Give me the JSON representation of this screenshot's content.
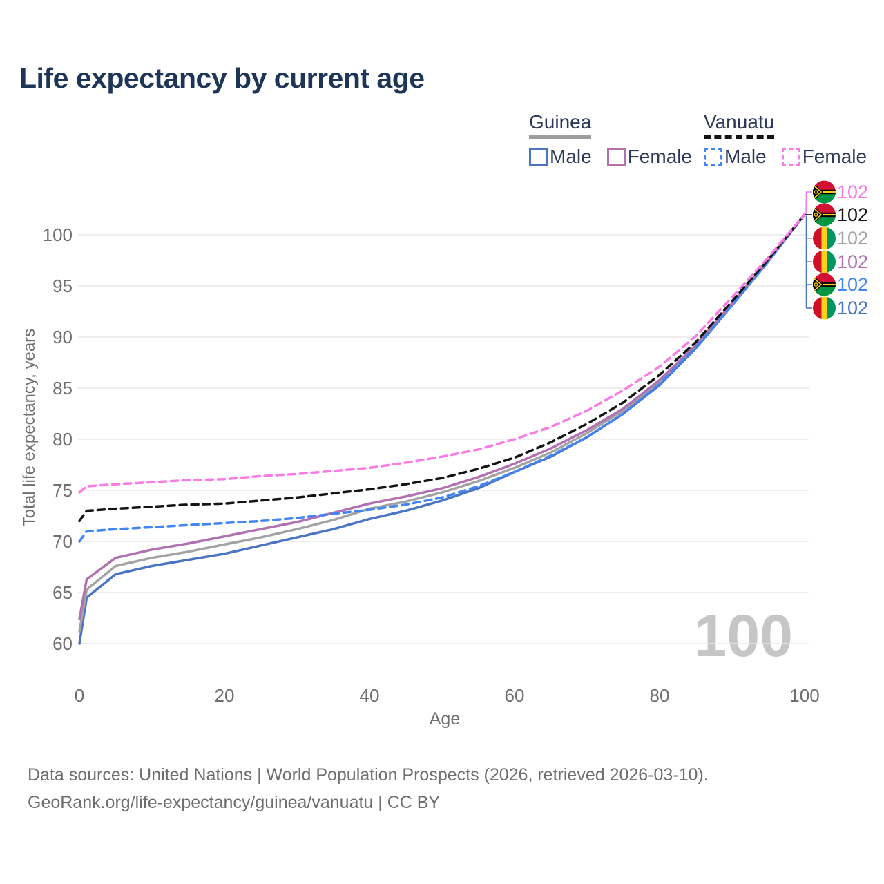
{
  "title": "Life expectancy by current age",
  "legend": {
    "groups": [
      {
        "label": "Guinea",
        "style": "solid",
        "line_color": "#9e9e9e",
        "items": [
          {
            "label": "Male",
            "color": "#4a74c4"
          },
          {
            "label": "Female",
            "color": "#b171b1"
          }
        ]
      },
      {
        "label": "Vanuatu",
        "style": "dashed",
        "line_color": "#141414",
        "items": [
          {
            "label": "Male",
            "color": "#4285f4"
          },
          {
            "label": "Female",
            "color": "#fb7be6"
          }
        ]
      }
    ]
  },
  "chart_data": {
    "type": "line",
    "title": "Life expectancy by current age",
    "xlabel": "Age",
    "ylabel": "Total life expectancy, years",
    "x_ticks": [
      0,
      20,
      40,
      60,
      80,
      100
    ],
    "y_ticks": [
      60,
      65,
      70,
      75,
      80,
      85,
      90,
      95,
      100
    ],
    "xlim": [
      0,
      100
    ],
    "ylim": [
      59.5,
      103
    ],
    "grid": true,
    "legend_position": "top-right",
    "watermark": "100",
    "x": [
      0,
      1,
      5,
      10,
      15,
      20,
      25,
      30,
      35,
      40,
      45,
      50,
      55,
      60,
      65,
      70,
      75,
      80,
      85,
      90,
      95,
      100
    ],
    "series": [
      {
        "id": "guinea-male",
        "name": "Guinea Male",
        "country": "Guinea",
        "sex": "Male",
        "color": "#4a74c4",
        "dashed": false,
        "end_label": "102",
        "values": [
          60.0,
          64.5,
          66.8,
          67.6,
          68.2,
          68.8,
          69.6,
          70.4,
          71.2,
          72.2,
          73.0,
          74.0,
          75.2,
          76.8,
          78.3,
          80.2,
          82.5,
          85.3,
          88.9,
          93.1,
          97.4,
          102
        ]
      },
      {
        "id": "guinea",
        "name": "Guinea",
        "country": "Guinea",
        "sex": "Both",
        "color": "#a3a3a3",
        "dashed": false,
        "end_label": "102",
        "values": [
          61.2,
          65.3,
          67.6,
          68.4,
          69.0,
          69.7,
          70.4,
          71.2,
          72.1,
          73.2,
          73.9,
          74.8,
          75.9,
          77.2,
          78.7,
          80.6,
          82.8,
          85.6,
          89.1,
          93.2,
          97.5,
          102
        ]
      },
      {
        "id": "guinea-female",
        "name": "Guinea Female",
        "country": "Guinea",
        "sex": "Female",
        "color": "#b171b1",
        "dashed": false,
        "end_label": "102",
        "values": [
          62.4,
          66.3,
          68.4,
          69.2,
          69.8,
          70.5,
          71.2,
          71.9,
          72.8,
          73.7,
          74.4,
          75.2,
          76.3,
          77.6,
          79.1,
          80.9,
          83.0,
          85.8,
          89.2,
          93.3,
          97.5,
          102
        ]
      },
      {
        "id": "vanuatu-male",
        "name": "Vanuatu Male",
        "country": "Vanuatu",
        "sex": "Male",
        "color": "#4285f4",
        "dashed": true,
        "end_label": "102",
        "values": [
          70.0,
          71.0,
          71.2,
          71.4,
          71.6,
          71.8,
          72.0,
          72.3,
          72.7,
          73.1,
          73.6,
          74.3,
          75.4,
          76.8,
          78.4,
          80.2,
          82.5,
          85.4,
          89.0,
          93.1,
          97.4,
          102
        ]
      },
      {
        "id": "vanuatu",
        "name": "Vanuatu",
        "country": "Vanuatu",
        "sex": "Both",
        "color": "#141414",
        "dashed": true,
        "end_label": "102",
        "values": [
          72.0,
          73.0,
          73.2,
          73.4,
          73.6,
          73.7,
          74.0,
          74.3,
          74.7,
          75.1,
          75.6,
          76.2,
          77.1,
          78.2,
          79.7,
          81.5,
          83.6,
          86.3,
          89.5,
          93.5,
          97.6,
          102
        ]
      },
      {
        "id": "vanuatu-female",
        "name": "Vanuatu Female",
        "country": "Vanuatu",
        "sex": "Female",
        "color": "#fb7be6",
        "dashed": true,
        "end_label": "102",
        "values": [
          74.8,
          75.4,
          75.6,
          75.8,
          76.0,
          76.1,
          76.4,
          76.6,
          76.9,
          77.2,
          77.7,
          78.3,
          79.0,
          80.0,
          81.2,
          82.8,
          84.8,
          87.1,
          90.1,
          93.9,
          97.8,
          102
        ]
      }
    ],
    "end_label_order": [
      "vanuatu-female",
      "vanuatu",
      "guinea",
      "guinea-female",
      "vanuatu-male",
      "guinea-male"
    ]
  },
  "footer": {
    "line1": "Data sources: United Nations | World Population Prospects (2026, retrieved 2026-03-10).",
    "line2": "GeoRank.org/life-expectancy/guinea/vanuatu | CC BY"
  }
}
